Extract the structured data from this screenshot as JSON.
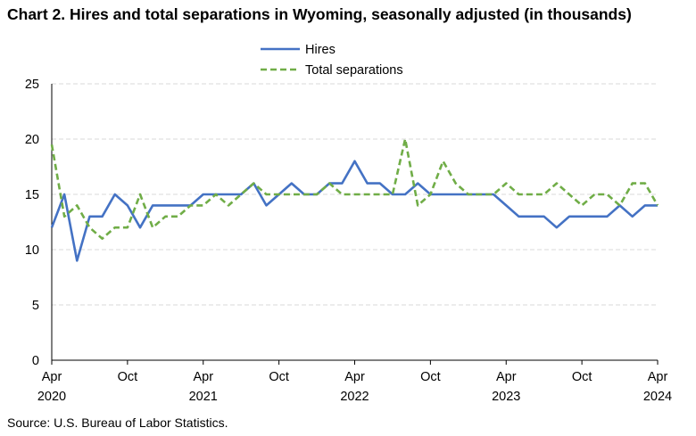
{
  "chart_data": {
    "type": "line",
    "title": "Chart 2. Hires and total separations in Wyoming, seasonally adjusted (in thousands)",
    "source": "Source: U.S. Bureau of Labor Statistics.",
    "xlabel": "",
    "ylabel": "",
    "ylim": [
      0,
      25
    ],
    "yticks": [
      "0",
      "5",
      "10",
      "15",
      "20",
      "25"
    ],
    "grid": true,
    "legend_position": "top-center",
    "x_start": "2020-04",
    "x_end": "2024-04",
    "x_tick_labels": [
      {
        "month": "Apr",
        "year": "2020",
        "date": "2020-04"
      },
      {
        "month": "Oct",
        "year": "",
        "date": "2020-10"
      },
      {
        "month": "Apr",
        "year": "2021",
        "date": "2021-04"
      },
      {
        "month": "Oct",
        "year": "",
        "date": "2021-10"
      },
      {
        "month": "Apr",
        "year": "2022",
        "date": "2022-04"
      },
      {
        "month": "Oct",
        "year": "",
        "date": "2022-10"
      },
      {
        "month": "Apr",
        "year": "2023",
        "date": "2023-04"
      },
      {
        "month": "Oct",
        "year": "",
        "date": "2023-10"
      },
      {
        "month": "Apr",
        "year": "2024",
        "date": "2024-04"
      }
    ],
    "series": [
      {
        "name": "Hires",
        "color": "#4472c4",
        "dash": "solid",
        "values": [
          12,
          15,
          9,
          13,
          13,
          15,
          14,
          12,
          14,
          14,
          14,
          14,
          15,
          15,
          15,
          15,
          16,
          14,
          15,
          16,
          15,
          15,
          16,
          16,
          18,
          16,
          16,
          15,
          15,
          16,
          15,
          15,
          15,
          15,
          15,
          15,
          14,
          13,
          13,
          13,
          12,
          13,
          13,
          13,
          13,
          14,
          13,
          14,
          14
        ]
      },
      {
        "name": "Total separations",
        "color": "#70ad47",
        "dash": "dashed",
        "values": [
          19.5,
          13,
          14,
          12,
          11,
          12,
          12,
          15,
          12,
          13,
          13,
          14,
          14,
          15,
          14,
          15,
          16,
          15,
          15,
          15,
          15,
          15,
          16,
          15,
          15,
          15,
          15,
          15,
          20,
          14,
          15,
          18,
          16,
          15,
          15,
          15,
          16,
          15,
          15,
          15,
          16,
          15,
          14,
          15,
          15,
          14,
          16,
          16,
          14
        ]
      }
    ]
  }
}
